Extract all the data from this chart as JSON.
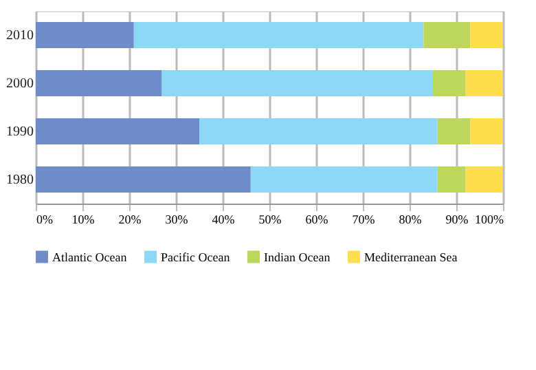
{
  "chart_data": {
    "type": "bar",
    "orientation": "horizontal",
    "stacked": true,
    "categories": [
      "2010",
      "2000",
      "1990",
      "1980"
    ],
    "series": [
      {
        "name": "Atlantic Ocean",
        "color": "#6f8bc8",
        "values": [
          21,
          27,
          35,
          46
        ]
      },
      {
        "name": "Pacific Ocean",
        "color": "#8ed8f5",
        "values": [
          62,
          58,
          51,
          40
        ]
      },
      {
        "name": "Indian Ocean",
        "color": "#bdd65c",
        "values": [
          10,
          7,
          7,
          6
        ]
      },
      {
        "name": "Mediterranean Sea",
        "color": "#fede4d",
        "values": [
          7,
          8,
          7,
          8
        ]
      }
    ],
    "xlim": [
      0,
      100
    ],
    "xticks": [
      {
        "value": 0,
        "label": "0%"
      },
      {
        "value": 10,
        "label": "10%"
      },
      {
        "value": 20,
        "label": "20%"
      },
      {
        "value": 30,
        "label": "30%"
      },
      {
        "value": 40,
        "label": "40%"
      },
      {
        "value": 50,
        "label": "50%"
      },
      {
        "value": 60,
        "label": "60%"
      },
      {
        "value": 70,
        "label": "70%"
      },
      {
        "value": 80,
        "label": "80%"
      },
      {
        "value": 90,
        "label": "90%"
      },
      {
        "value": 100,
        "label": "100%"
      }
    ],
    "grid": "x",
    "legend": "bottom"
  }
}
